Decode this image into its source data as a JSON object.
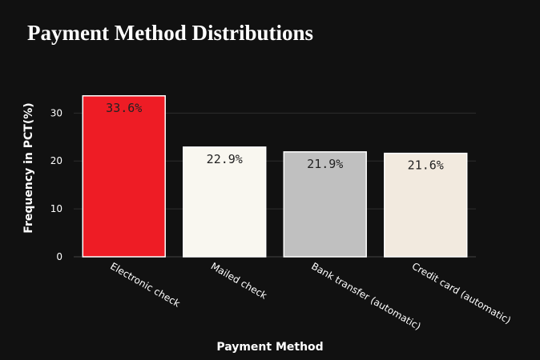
{
  "chart_data": {
    "type": "bar",
    "title": "Payment Method Distributions",
    "xlabel": "Payment Method",
    "ylabel": "Frequency in PCT(%)",
    "categories": [
      "Electronic check",
      "Mailed check",
      "Bank transfer (automatic)",
      "Credit card (automatic)"
    ],
    "values": [
      33.6,
      22.9,
      21.9,
      21.6
    ],
    "data_labels": [
      "33.6%",
      "22.9%",
      "21.9%",
      "21.6%"
    ],
    "bar_colors": [
      "#ee1c25",
      "#f9f7f0",
      "#c0c0c0",
      "#f2eadf"
    ],
    "ylim": [
      0,
      35.4
    ],
    "yticks": [
      0,
      10,
      20,
      30
    ],
    "ytick_labels": [
      "0",
      "10",
      "20",
      "30"
    ],
    "grid": true,
    "legend": "none",
    "colors": {
      "background": "#111111",
      "grid": "#2e2e2e",
      "text": "#ffffff",
      "bar_outline": "#ffffff",
      "label_text": "#222222"
    }
  }
}
